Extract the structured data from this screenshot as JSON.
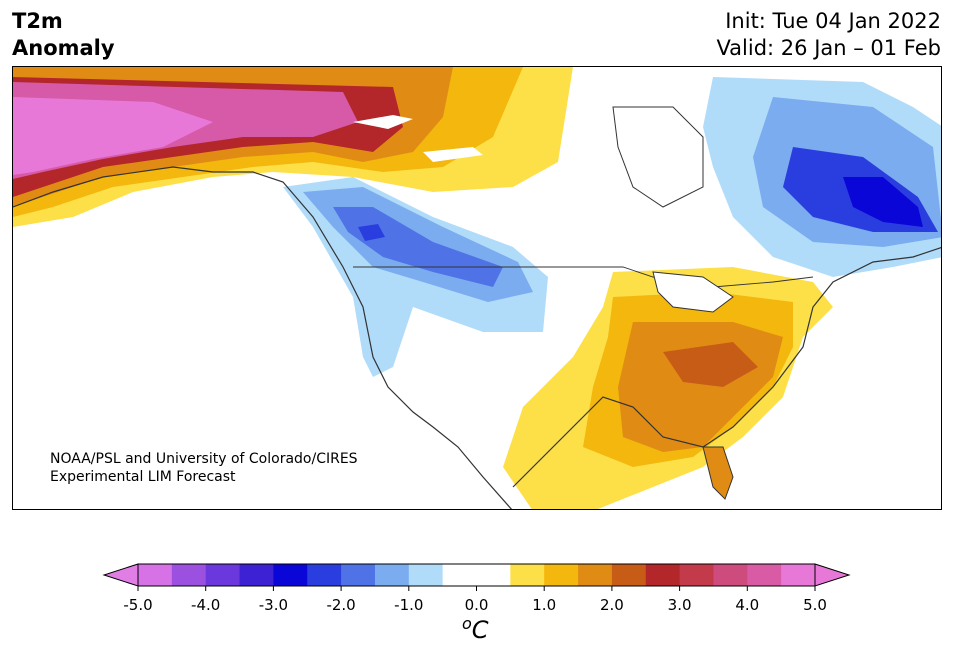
{
  "header": {
    "variable": "T2m",
    "variable_sub": "Anomaly",
    "init": "Init: Tue 04 Jan 2022",
    "valid": "Valid: 26 Jan – 01 Feb"
  },
  "credit": {
    "line1": "NOAA/PSL and University of Colorado/CIRES",
    "line2": "Experimental LIM Forecast"
  },
  "colorbar": {
    "units_sup": "o",
    "units_base": "C",
    "tick_labels": [
      "-5.0",
      "-4.0",
      "-3.0",
      "-2.0",
      "-1.0",
      "0.0",
      "1.0",
      "2.0",
      "3.0",
      "4.0",
      "5.0"
    ],
    "colors": [
      "#d671e6",
      "#9b50e0",
      "#6a38dc",
      "#3d22d4",
      "#0a06d8",
      "#2a3ee0",
      "#4f73e6",
      "#7aacef",
      "#b0dcfa",
      "#ffffff",
      "#ffffff",
      "#fde047",
      "#f3b70d",
      "#e08c14",
      "#c75c17",
      "#b3262a",
      "#c33a4a",
      "#ce4b7e",
      "#d95ba5",
      "#e878d8"
    ],
    "under_color": "#e07ee6",
    "over_color": "#e878d8"
  },
  "map_legend": {
    "warm_strong": "#d65aa8",
    "warm_mid": "#c43a3a",
    "orange": "#e08c14",
    "amber": "#f3b70d",
    "yellow": "#fde047",
    "cold_light": "#b0dcfa",
    "cold_mid": "#6f9ef0",
    "cold_strong": "#2a3ee0",
    "cold_max": "#0a06d8"
  }
}
